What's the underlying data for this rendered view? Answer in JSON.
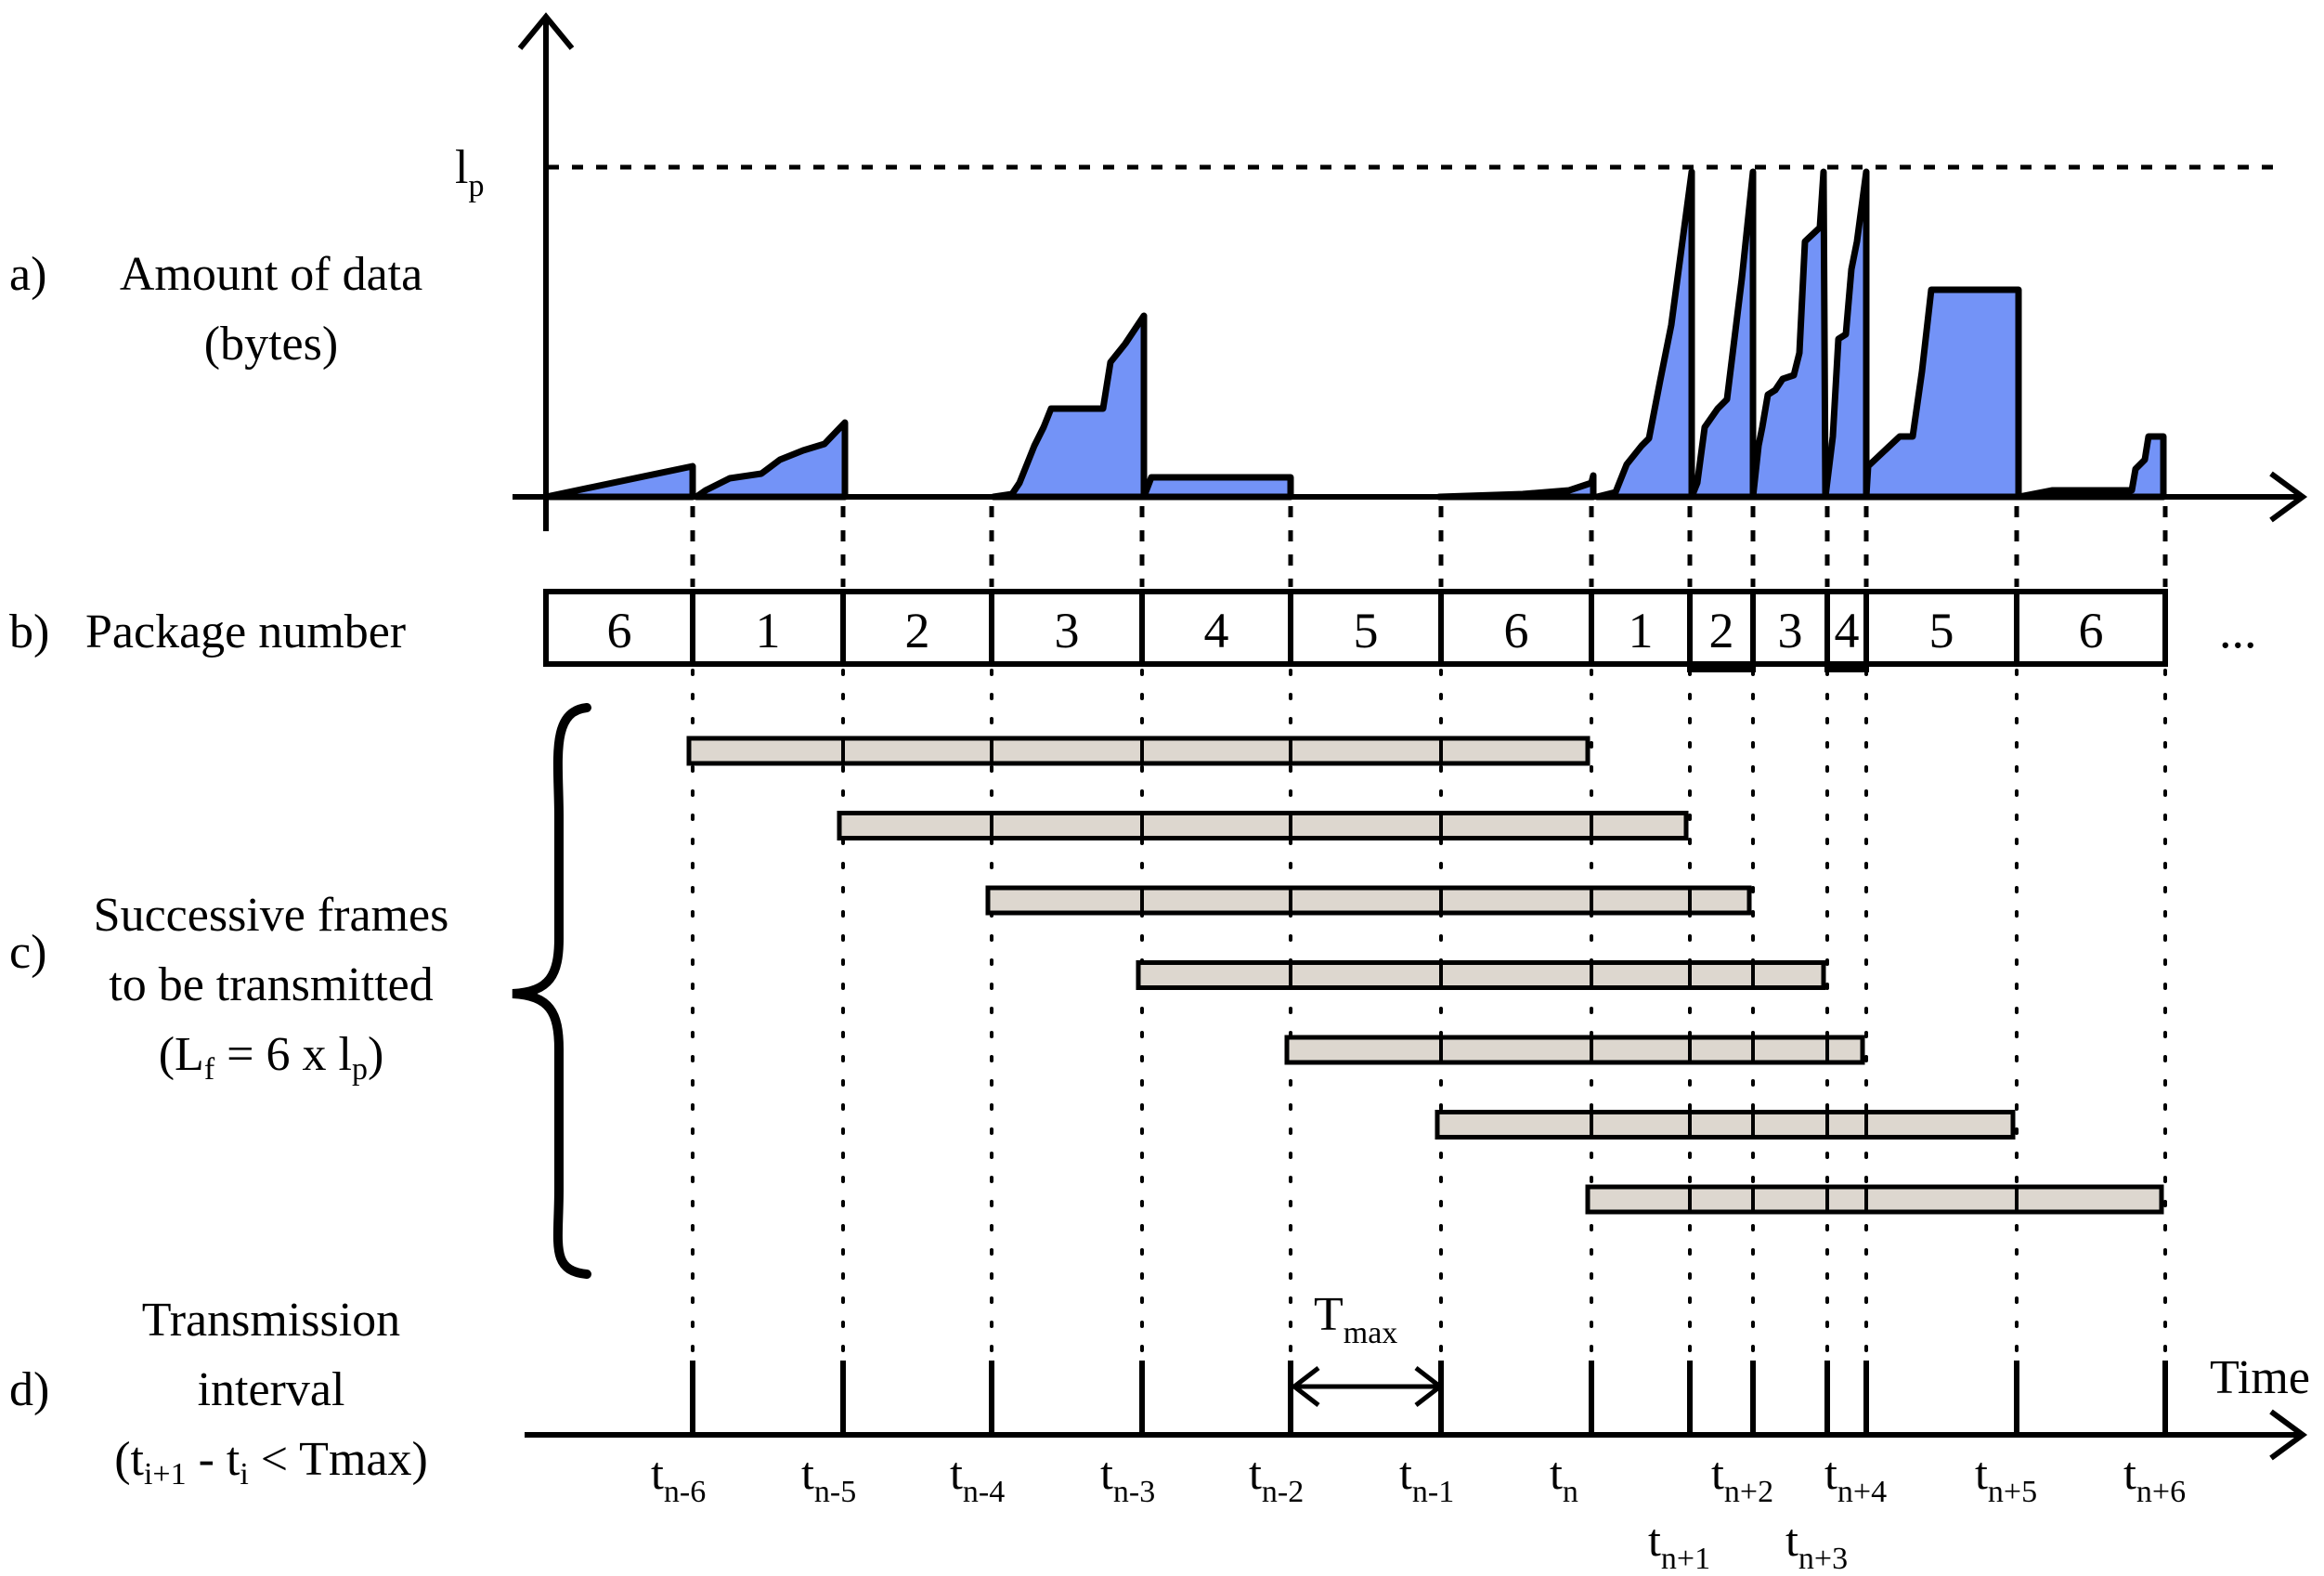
{
  "labels": {
    "a_prefix": "a)",
    "a_line1": "Amount of data",
    "a_line2": "(bytes)",
    "b_prefix": "b)",
    "b_text": "Package number",
    "c_prefix": "c)",
    "c_line1": "Successive frames",
    "c_line2": "to be transmitted",
    "c_line3_pre": "(L",
    "c_line3_sub1": "f",
    "c_line3_mid": " = 6 x l",
    "c_line3_sub2": "p",
    "c_line3_post": ")",
    "d_prefix": "d)",
    "d_line1": "Transmission",
    "d_line2": "interval",
    "d_line3_pre": "(t",
    "d_line3_sub1": "i+1",
    "d_line3_mid": " - t",
    "d_line3_sub2": "i",
    "d_line3_post": " < Tmax)",
    "lp_main": "l",
    "lp_sub": "p",
    "time_label": "Time",
    "tmax_main": "T",
    "tmax_sub": "max",
    "ellipsis": "..."
  },
  "packages": [
    {
      "label": "6",
      "boxed": false
    },
    {
      "label": "1",
      "boxed": false
    },
    {
      "label": "2",
      "boxed": false
    },
    {
      "label": "3",
      "boxed": false
    },
    {
      "label": "4",
      "boxed": false
    },
    {
      "label": "5",
      "boxed": false
    },
    {
      "label": "6",
      "boxed": false
    },
    {
      "label": "1",
      "boxed": false
    },
    {
      "label": "2",
      "boxed": true
    },
    {
      "label": "3",
      "boxed": false
    },
    {
      "label": "4",
      "boxed": true
    },
    {
      "label": "5",
      "boxed": false
    },
    {
      "label": "6",
      "boxed": false
    }
  ],
  "time_ticks": [
    {
      "main": "t",
      "sub": "n-6",
      "row": "upper"
    },
    {
      "main": "t",
      "sub": "n-5",
      "row": "upper"
    },
    {
      "main": "t",
      "sub": "n-4",
      "row": "upper"
    },
    {
      "main": "t",
      "sub": "n-3",
      "row": "upper"
    },
    {
      "main": "t",
      "sub": "n-2",
      "row": "upper"
    },
    {
      "main": "t",
      "sub": "n-1",
      "row": "upper"
    },
    {
      "main": "t",
      "sub": "n",
      "row": "upper"
    },
    {
      "main": "t",
      "sub": "n+1",
      "row": "lower"
    },
    {
      "main": "t",
      "sub": "n+2",
      "row": "upper"
    },
    {
      "main": "t",
      "sub": "n+3",
      "row": "lower"
    },
    {
      "main": "t",
      "sub": "n+4",
      "row": "upper"
    },
    {
      "main": "t",
      "sub": "n+5",
      "row": "upper"
    },
    {
      "main": "t",
      "sub": "n+6",
      "row": "upper"
    }
  ],
  "frames": [
    {
      "start_tick": 0,
      "end_tick": 6,
      "span": 6
    },
    {
      "start_tick": 1,
      "end_tick": 7,
      "span": 6
    },
    {
      "start_tick": 2,
      "end_tick": 8,
      "span": 6
    },
    {
      "start_tick": 3,
      "end_tick": 9,
      "span": 6
    },
    {
      "start_tick": 4,
      "end_tick": 10,
      "span": 6
    },
    {
      "start_tick": 5,
      "end_tick": 11,
      "span": 6
    },
    {
      "start_tick": 6,
      "end_tick": 12,
      "span": 6
    }
  ],
  "colors": {
    "data_fill": "#7393f7",
    "frame_fill": "#ddd7cf"
  }
}
